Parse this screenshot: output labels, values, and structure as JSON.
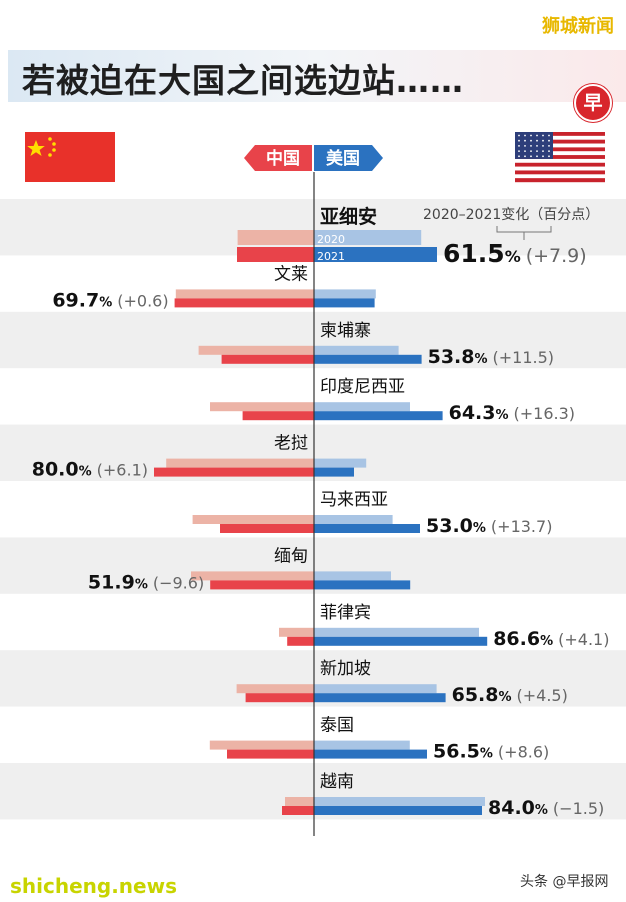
{
  "brand": "狮城新闻",
  "title": "若被迫在大国之间选边站……",
  "logo_char": "早",
  "watermark_left": "shicheng.news",
  "watermark_right": "头条 @早报网",
  "colors": {
    "china_2020": "#ecb3a6",
    "china_2021": "#e8434a",
    "us_2020": "#a8c4e4",
    "us_2021": "#2b72c0",
    "row_shade": "#efefef",
    "axis": "#333333"
  },
  "legend": {
    "china_label": "中国",
    "us_label": "美国",
    "year_2020": "2020",
    "year_2021": "2021",
    "change_label": "2020–2021变化（百分点）"
  },
  "chart_data": {
    "type": "bar",
    "orientation": "horizontal-diverging",
    "title": "若被迫在大国之间选边站……",
    "series": [
      {
        "name": "中国",
        "side": "left"
      },
      {
        "name": "美国",
        "side": "right"
      }
    ],
    "categories": [
      "亚细安",
      "文莱",
      "柬埔寨",
      "印度尼西亚",
      "老挝",
      "马来西亚",
      "缅甸",
      "菲律宾",
      "新加坡",
      "泰国",
      "越南"
    ],
    "rows": [
      {
        "label": "亚细安",
        "cn2020": 38.2,
        "cn2021": 38.5,
        "us2020": 53.6,
        "us2021": 61.5,
        "lead": "us",
        "value": "61.5",
        "unit": "%",
        "change": "(+7.9)"
      },
      {
        "label": "文莱",
        "cn2020": 69.1,
        "cn2021": 69.7,
        "us2020": 30.9,
        "us2021": 30.3,
        "lead": "cn",
        "value": "69.7",
        "unit": "%",
        "change": "(+0.6)"
      },
      {
        "label": "柬埔寨",
        "cn2020": 57.7,
        "cn2021": 46.2,
        "us2020": 42.3,
        "us2021": 53.8,
        "lead": "us",
        "value": "53.8",
        "unit": "%",
        "change": "(+11.5)"
      },
      {
        "label": "印度尼西亚",
        "cn2020": 52.0,
        "cn2021": 35.7,
        "us2020": 48.0,
        "us2021": 64.3,
        "lead": "us",
        "value": "64.3",
        "unit": "%",
        "change": "(+16.3)"
      },
      {
        "label": "老挝",
        "cn2020": 73.9,
        "cn2021": 80.0,
        "us2020": 26.1,
        "us2021": 20.0,
        "lead": "cn",
        "value": "80.0",
        "unit": "%",
        "change": "(+6.1)"
      },
      {
        "label": "马来西亚",
        "cn2020": 60.7,
        "cn2021": 47.0,
        "us2020": 39.3,
        "us2021": 53.0,
        "lead": "us",
        "value": "53.0",
        "unit": "%",
        "change": "(+13.7)"
      },
      {
        "label": "缅甸",
        "cn2020": 61.5,
        "cn2021": 51.9,
        "us2020": 38.5,
        "us2021": 48.1,
        "lead": "cn",
        "value": "51.9",
        "unit": "%",
        "change": "(−9.6)"
      },
      {
        "label": "菲律宾",
        "cn2020": 17.5,
        "cn2021": 13.4,
        "us2020": 82.5,
        "us2021": 86.6,
        "lead": "us",
        "value": "86.6",
        "unit": "%",
        "change": "(+4.1)"
      },
      {
        "label": "新加坡",
        "cn2020": 38.7,
        "cn2021": 34.2,
        "us2020": 61.3,
        "us2021": 65.8,
        "lead": "us",
        "value": "65.8",
        "unit": "%",
        "change": "(+4.5)"
      },
      {
        "label": "泰国",
        "cn2020": 52.1,
        "cn2021": 43.5,
        "us2020": 47.9,
        "us2021": 56.5,
        "lead": "us",
        "value": "56.5",
        "unit": "%",
        "change": "(+8.6)"
      },
      {
        "label": "越南",
        "cn2020": 14.5,
        "cn2021": 16.0,
        "us2020": 85.5,
        "us2021": 84.0,
        "lead": "us",
        "value": "84.0",
        "unit": "%",
        "change": "(−1.5)"
      }
    ]
  }
}
